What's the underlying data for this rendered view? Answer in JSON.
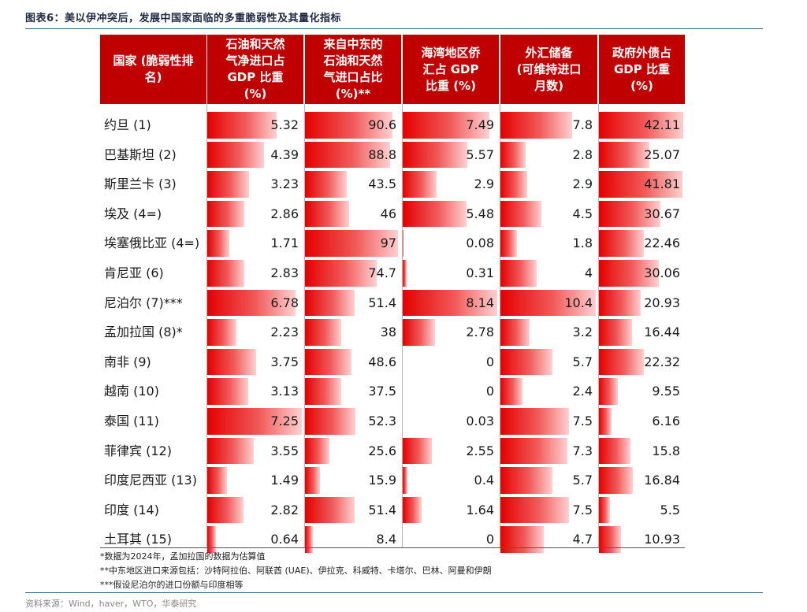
{
  "title": "图表6：美以伊冲突后，发展中国家面临的多重脆弱性及其量化指标",
  "headers": {
    "country": "国家 (脆弱性排\n名)",
    "oil_gas": "石油和天然\n气净进口占\nGDP 比重\n(%)",
    "mideast": "来自中东的\n石油和天然\n气进口占比\n(%)**",
    "gulf_remit": "海湾地区侨\n汇占 GDP\n比重 (%)",
    "fx_reserve": "外汇储备\n(可维持进口\n月数)",
    "ext_debt": "政府外债占\nGDP 比重\n(%)"
  },
  "rows": [
    {
      "country": "约旦 (1)",
      "oil_gas": "5.32",
      "mideast": "90.6",
      "gulf_remit": "7.49",
      "fx_reserve": "7.8",
      "ext_debt": "42.11"
    },
    {
      "country": "巴基斯坦 (2)",
      "oil_gas": "4.39",
      "mideast": "88.8",
      "gulf_remit": "5.57",
      "fx_reserve": "2.8",
      "ext_debt": "25.07"
    },
    {
      "country": "斯里兰卡 (3)",
      "oil_gas": "3.23",
      "mideast": "43.5",
      "gulf_remit": "2.9",
      "fx_reserve": "2.9",
      "ext_debt": "41.81"
    },
    {
      "country": "埃及 (4=)",
      "oil_gas": "2.86",
      "mideast": "46",
      "gulf_remit": "5.48",
      "fx_reserve": "4.5",
      "ext_debt": "30.67"
    },
    {
      "country": "埃塞俄比亚 (4=)",
      "oil_gas": "1.71",
      "mideast": "97",
      "gulf_remit": "0.08",
      "fx_reserve": "1.8",
      "ext_debt": "22.46"
    },
    {
      "country": "肯尼亚 (6)",
      "oil_gas": "2.83",
      "mideast": "74.7",
      "gulf_remit": "0.31",
      "fx_reserve": "4",
      "ext_debt": "30.06"
    },
    {
      "country": "尼泊尔 (7)***",
      "oil_gas": "6.78",
      "mideast": "51.4",
      "gulf_remit": "8.14",
      "fx_reserve": "10.4",
      "ext_debt": "20.93"
    },
    {
      "country": "孟加拉国 (8)*",
      "oil_gas": "2.23",
      "mideast": "38",
      "gulf_remit": "2.78",
      "fx_reserve": "3.2",
      "ext_debt": "16.44"
    },
    {
      "country": "南非 (9)",
      "oil_gas": "3.75",
      "mideast": "48.6",
      "gulf_remit": "0",
      "fx_reserve": "5.7",
      "ext_debt": "22.32"
    },
    {
      "country": "越南 (10)",
      "oil_gas": "3.13",
      "mideast": "37.5",
      "gulf_remit": "0",
      "fx_reserve": "2.4",
      "ext_debt": "9.55"
    },
    {
      "country": "泰国 (11)",
      "oil_gas": "7.25",
      "mideast": "52.3",
      "gulf_remit": "0.03",
      "fx_reserve": "7.5",
      "ext_debt": "6.16"
    },
    {
      "country": "菲律宾 (12)",
      "oil_gas": "3.55",
      "mideast": "25.6",
      "gulf_remit": "2.55",
      "fx_reserve": "7.3",
      "ext_debt": "15.8"
    },
    {
      "country": "印度尼西亚 (13)",
      "oil_gas": "1.49",
      "mideast": "15.9",
      "gulf_remit": "0.4",
      "fx_reserve": "5.7",
      "ext_debt": "16.84"
    },
    {
      "country": "印度 (14)",
      "oil_gas": "2.82",
      "mideast": "51.4",
      "gulf_remit": "1.64",
      "fx_reserve": "7.5",
      "ext_debt": "5.5"
    },
    {
      "country": "土耳其 (15)",
      "oil_gas": "0.64",
      "mideast": "8.4",
      "gulf_remit": "0",
      "fx_reserve": "4.7",
      "ext_debt": "10.93"
    }
  ],
  "notes": [
    "*数据为2024年，孟加拉国的数据为估算值",
    "**中东地区进口来源包括：沙特阿拉伯、阿联酋 (UAE)、伊拉克、科威特、卡塔尔、巴林、阿曼和伊朗",
    "***假设尼泊尔的进口份额与印度相等"
  ],
  "source": "资料来源：Wind，haver，WTO，华泰研究",
  "colors": {
    "header_bg": "#c00000",
    "bar_start": "#e40000",
    "bar_end": "#ffd0d0",
    "rule": "#2b5f8a"
  }
}
